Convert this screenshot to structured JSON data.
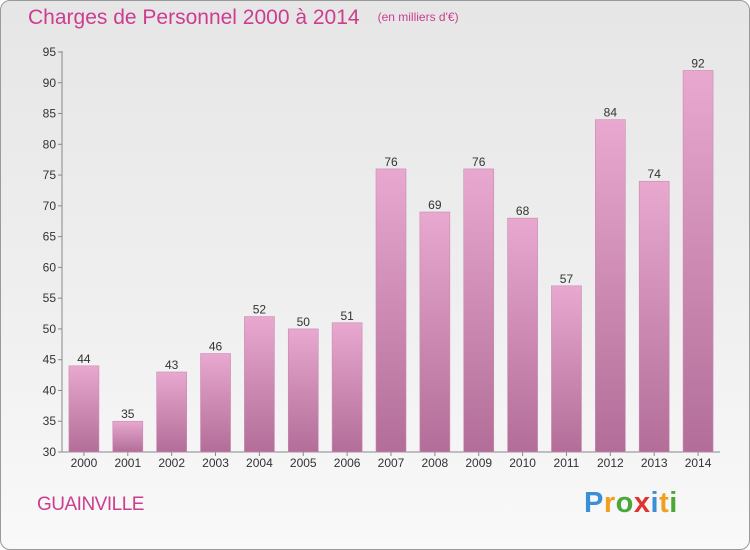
{
  "title": "Charges de Personnel 2000 à 2014",
  "unit_note": "(en milliers d'€)",
  "commune": "GUAINVILLE",
  "logo": {
    "letters": [
      {
        "ch": "P",
        "color": "#3a8fd6"
      },
      {
        "ch": "r",
        "color": "#f0a020"
      },
      {
        "ch": "o",
        "color": "#4aa83a"
      },
      {
        "ch": "x",
        "color": "#e0332f"
      },
      {
        "ch": "i",
        "color": "#3a8fd6"
      },
      {
        "ch": "t",
        "color": "#f0a020"
      },
      {
        "ch": "i",
        "color": "#4aa83a"
      }
    ]
  },
  "colors": {
    "bar_top": "#e8a8cf",
    "bar_bottom": "#b26e98",
    "accent": "#cc3d8f"
  },
  "chart_data": {
    "type": "bar",
    "categories": [
      "2000",
      "2001",
      "2002",
      "2003",
      "2004",
      "2005",
      "2006",
      "2007",
      "2008",
      "2009",
      "2010",
      "2011",
      "2012",
      "2013",
      "2014"
    ],
    "values": [
      44,
      35,
      43,
      46,
      52,
      50,
      51,
      76,
      69,
      76,
      68,
      57,
      84,
      74,
      92
    ],
    "title": "Charges de Personnel 2000 à 2014",
    "ylim": [
      30,
      95
    ],
    "yticks": [
      30,
      35,
      40,
      45,
      50,
      55,
      60,
      65,
      70,
      75,
      80,
      85,
      90,
      95
    ],
    "grid": false
  }
}
